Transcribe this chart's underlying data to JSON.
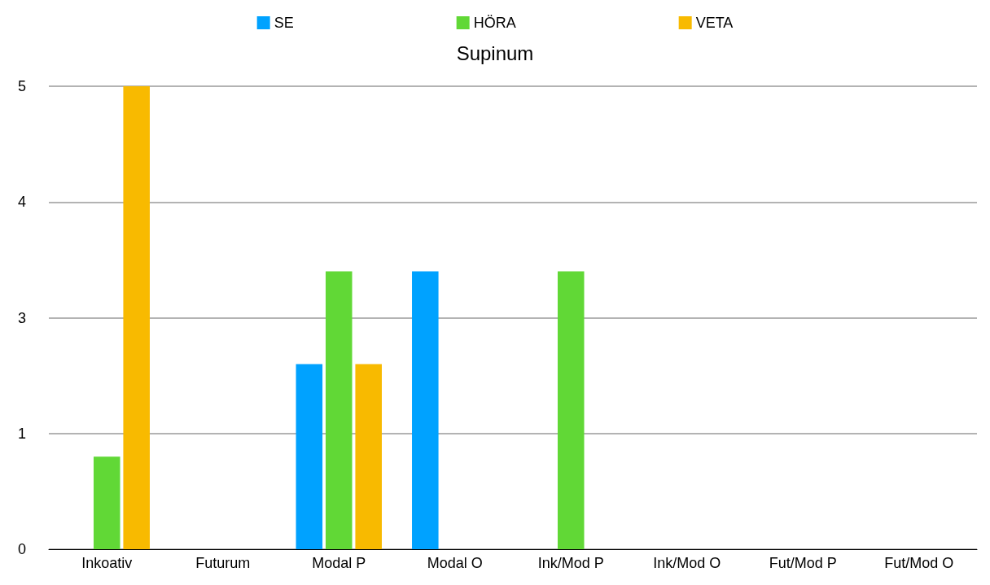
{
  "chart_data": {
    "type": "bar",
    "title": "Supinum",
    "categories": [
      "Inkoativ",
      "Futurum",
      "Modal P",
      "Modal O",
      "Ink/Mod P",
      "Ink/Mod O",
      "Fut/Mod P",
      "Fut/Mod O"
    ],
    "series": [
      {
        "name": "SE",
        "color": "#00a2ff",
        "values": [
          0,
          0,
          2,
          3,
          0,
          0,
          0,
          0
        ]
      },
      {
        "name": "HÖRA",
        "color": "#61d836",
        "values": [
          1,
          0,
          3,
          0,
          3,
          0,
          0,
          0
        ]
      },
      {
        "name": "VETA",
        "color": "#f8ba00",
        "values": [
          5,
          0,
          2,
          0,
          0,
          0,
          0,
          0
        ]
      }
    ],
    "ylim": [
      0,
      5
    ],
    "yticks": [
      0,
      {
        "value": 1.25,
        "label": "1"
      },
      {
        "value": 2.5,
        "label": "3"
      },
      {
        "value": 3.75,
        "label": "4"
      },
      5
    ],
    "grid": "y",
    "legend": "top"
  }
}
